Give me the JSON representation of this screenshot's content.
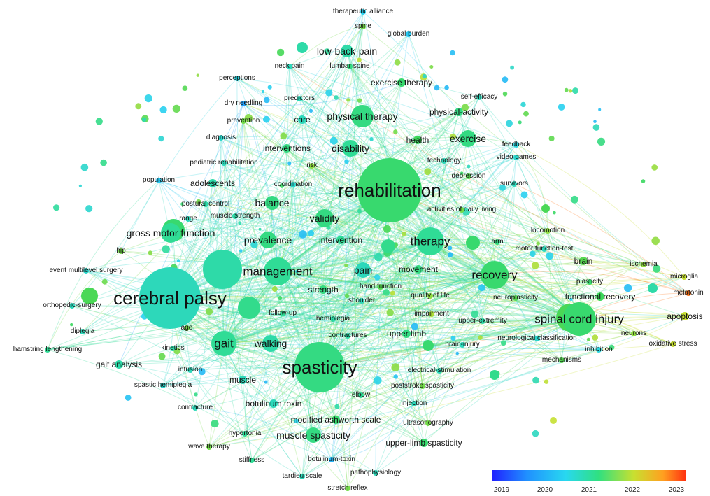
{
  "keywords": [
    {
      "label": "rehabilitation",
      "year": 2021.0,
      "size": "xl"
    },
    {
      "label": "cerebral palsy",
      "year": 2020.6,
      "size": "xl"
    },
    {
      "label": "spasticity",
      "year": 2020.9,
      "size": "xl"
    },
    {
      "label": "spinal cord injury",
      "year": 2021.0,
      "size": "l"
    },
    {
      "label": "recovery",
      "year": 2021.0,
      "size": "l"
    },
    {
      "label": "therapy",
      "year": 2020.8,
      "size": "l"
    },
    {
      "label": "management",
      "year": 2020.8,
      "size": "l"
    },
    {
      "label": "gait",
      "year": 2020.8,
      "size": "l"
    },
    {
      "label": "physical therapy",
      "year": 2020.9,
      "size": "m"
    },
    {
      "label": "validity",
      "year": 2020.9,
      "size": "m"
    },
    {
      "label": "gross motor function",
      "year": 2020.8,
      "size": "m"
    },
    {
      "label": "low-back-pain",
      "year": 2020.7,
      "size": "m"
    },
    {
      "label": "muscle spasticity",
      "year": 2020.9,
      "size": "m"
    },
    {
      "label": "disability",
      "year": 2020.8,
      "size": "m"
    },
    {
      "label": "exercise",
      "year": 2020.9,
      "size": "m"
    },
    {
      "label": "walking",
      "year": 2020.7,
      "size": "m"
    },
    {
      "label": "prevalence",
      "year": 2020.9,
      "size": "m"
    },
    {
      "label": "balance",
      "year": 2020.9,
      "size": "m"
    },
    {
      "label": "pain",
      "year": 2020.6,
      "size": "m"
    },
    {
      "label": "movement",
      "year": 2020.9,
      "size": "s"
    },
    {
      "label": "physical-activity",
      "year": 2020.9,
      "size": "s"
    },
    {
      "label": "care",
      "year": 2020.6,
      "size": "s"
    },
    {
      "label": "adolescents",
      "year": 2020.7,
      "size": "s"
    },
    {
      "label": "muscle",
      "year": 2020.6,
      "size": "s"
    },
    {
      "label": "functional recovery",
      "year": 2021.1,
      "size": "s"
    },
    {
      "label": "strength",
      "year": 2020.9,
      "size": "s"
    },
    {
      "label": "modified ashworth scale",
      "year": 2021.0,
      "size": "s"
    },
    {
      "label": "botulinum toxin",
      "year": 2020.6,
      "size": "s"
    },
    {
      "label": "upper limb",
      "year": 2020.9,
      "size": "s"
    },
    {
      "label": "upper-limb spasticity",
      "year": 2021.0,
      "size": "s"
    },
    {
      "label": "gait analysis",
      "year": 2020.7,
      "size": "s"
    },
    {
      "label": "exercise therapy",
      "year": 2021.0,
      "size": "s"
    },
    {
      "label": "interventions",
      "year": 2020.9,
      "size": "s"
    },
    {
      "label": "intervention",
      "year": 2020.8,
      "size": "s"
    },
    {
      "label": "health",
      "year": 2021.1,
      "size": "s"
    },
    {
      "label": "apoptosis",
      "year": 2021.6,
      "size": "s"
    },
    {
      "label": "brain",
      "year": 2021.2,
      "size": "s"
    },
    {
      "label": "neck pain",
      "year": 2020.6,
      "size": "xs"
    },
    {
      "label": "lumbar spine",
      "year": 2020.9,
      "size": "xs"
    },
    {
      "label": "therapeutic alliance",
      "year": 2020.3,
      "size": "xs"
    },
    {
      "label": "spine",
      "year": 2021.3,
      "size": "xs"
    },
    {
      "label": "global burden",
      "year": 2020.2,
      "size": "xs"
    },
    {
      "label": "perceptions",
      "year": 2020.4,
      "size": "xs"
    },
    {
      "label": "predictors",
      "year": 2020.6,
      "size": "xs"
    },
    {
      "label": "self-efficacy",
      "year": 2020.6,
      "size": "xs"
    },
    {
      "label": "dry needling",
      "year": 2019.8,
      "size": "xs"
    },
    {
      "label": "prevention",
      "year": 2021.3,
      "size": "xs"
    },
    {
      "label": "diagnosis",
      "year": 2020.5,
      "size": "xs"
    },
    {
      "label": "feedback",
      "year": 2020.4,
      "size": "xs"
    },
    {
      "label": "video games",
      "year": 2020.5,
      "size": "xs"
    },
    {
      "label": "technology",
      "year": 2020.6,
      "size": "xs"
    },
    {
      "label": "pediatric rehabilitation",
      "year": 2020.6,
      "size": "xs"
    },
    {
      "label": "risk",
      "year": 2021.4,
      "size": "xs"
    },
    {
      "label": "depression",
      "year": 2021.2,
      "size": "xs"
    },
    {
      "label": "population",
      "year": 2020.2,
      "size": "xs"
    },
    {
      "label": "coordination",
      "year": 2020.5,
      "size": "xs"
    },
    {
      "label": "survivors",
      "year": 2020.6,
      "size": "xs"
    },
    {
      "label": "postural control",
      "year": 2020.7,
      "size": "xs"
    },
    {
      "label": "activities of daily living",
      "year": 2021.3,
      "size": "xs"
    },
    {
      "label": "range",
      "year": 2020.6,
      "size": "xs"
    },
    {
      "label": "muscle strength",
      "year": 2020.7,
      "size": "xs"
    },
    {
      "label": "locomotion",
      "year": 2021.4,
      "size": "xs"
    },
    {
      "label": "hip",
      "year": 2021.3,
      "size": "xs"
    },
    {
      "label": "arm",
      "year": 2020.9,
      "size": "xs"
    },
    {
      "label": "motor function-test",
      "year": 2020.6,
      "size": "xs"
    },
    {
      "label": "event multilevel surgery",
      "year": 2020.5,
      "size": "xs"
    },
    {
      "label": "ischemia",
      "year": 2021.4,
      "size": "xs"
    },
    {
      "label": "microglia",
      "year": 2021.6,
      "size": "xs"
    },
    {
      "label": "plasticity",
      "year": 2021.0,
      "size": "xs"
    },
    {
      "label": "melatonin",
      "year": 2022.6,
      "size": "xs"
    },
    {
      "label": "hand function",
      "year": 2021.2,
      "size": "xs"
    },
    {
      "label": "orthopedic-surgery",
      "year": 2020.6,
      "size": "xs"
    },
    {
      "label": "shoulder",
      "year": 2020.6,
      "size": "xs"
    },
    {
      "label": "quality of life",
      "year": 2021.4,
      "size": "xs"
    },
    {
      "label": "neuroplasticity",
      "year": 2021.2,
      "size": "xs"
    },
    {
      "label": "follow-up",
      "year": 2020.8,
      "size": "xs"
    },
    {
      "label": "impairment",
      "year": 2021.5,
      "size": "xs"
    },
    {
      "label": "upper-extremity",
      "year": 2020.7,
      "size": "xs"
    },
    {
      "label": "diplegia",
      "year": 2020.6,
      "size": "xs"
    },
    {
      "label": "age",
      "year": 2021.3,
      "size": "xs"
    },
    {
      "label": "hemiplegia",
      "year": 2020.7,
      "size": "xs"
    },
    {
      "label": "neurons",
      "year": 2021.4,
      "size": "xs"
    },
    {
      "label": "neurological classification",
      "year": 2020.5,
      "size": "xs"
    },
    {
      "label": "oxidative stress",
      "year": 2021.6,
      "size": "xs"
    },
    {
      "label": "contractures",
      "year": 2020.7,
      "size": "xs"
    },
    {
      "label": "brain-injury",
      "year": 2020.6,
      "size": "xs"
    },
    {
      "label": "inhibition",
      "year": 2020.4,
      "size": "xs"
    },
    {
      "label": "hamstring lengthening",
      "year": 2020.8,
      "size": "xs"
    },
    {
      "label": "kinetics",
      "year": 2020.7,
      "size": "xs"
    },
    {
      "label": "mechanisms",
      "year": 2021.2,
      "size": "xs"
    },
    {
      "label": "infusion",
      "year": 2020.6,
      "size": "xs"
    },
    {
      "label": "electrical-stimulation",
      "year": 2020.6,
      "size": "xs"
    },
    {
      "label": "spastic hemiplegia",
      "year": 2020.5,
      "size": "xs"
    },
    {
      "label": "poststroke spasticity",
      "year": 2021.3,
      "size": "xs"
    },
    {
      "label": "contracture",
      "year": 2020.6,
      "size": "xs"
    },
    {
      "label": "elbow",
      "year": 2020.8,
      "size": "xs"
    },
    {
      "label": "injection",
      "year": 2020.6,
      "size": "xs"
    },
    {
      "label": "ultrasonography",
      "year": 2021.3,
      "size": "xs"
    },
    {
      "label": "hypertonia",
      "year": 2020.8,
      "size": "xs"
    },
    {
      "label": "wave therapy",
      "year": 2021.3,
      "size": "xs"
    },
    {
      "label": "stiffness",
      "year": 2020.8,
      "size": "xs"
    },
    {
      "label": "botulinum-toxin",
      "year": 2020.0,
      "size": "xs"
    },
    {
      "label": "pathophysiology",
      "year": 2020.6,
      "size": "xs"
    },
    {
      "label": "tardieu scale",
      "year": 2020.6,
      "size": "xs"
    },
    {
      "label": "stretch reflex",
      "year": 2021.3,
      "size": "xs"
    }
  ],
  "legend": {
    "ticks": [
      "2019",
      "2020",
      "2021",
      "2022",
      "2023"
    ]
  }
}
